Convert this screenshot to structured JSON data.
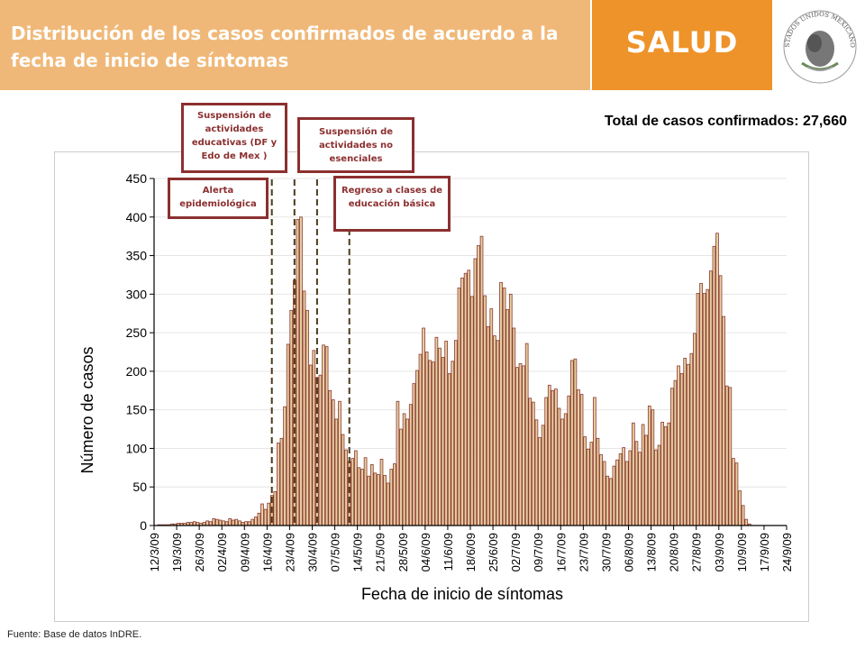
{
  "header": {
    "title": "Distribución de los casos confirmados de acuerdo a la fecha de inicio de síntomas",
    "brand": "SALUD",
    "seal_text": "ESTADOS UNIDOS MEXICANOS",
    "colors": {
      "title_band": "#f0b878",
      "brand_band": "#ee9329"
    }
  },
  "total_label": "Total de casos confirmados: 27,660",
  "source": "Fuente: Base de datos InDRE.",
  "annotations": [
    {
      "id": "ann-alerta",
      "text": "Alerta epidemiológica",
      "date": "2009-04-17"
    },
    {
      "id": "ann-educativas",
      "text": "Suspensión de actividades educativas (DF y Edo de Mex )",
      "date": "2009-04-24"
    },
    {
      "id": "ann-no-esenciales",
      "text": "Suspensión de actividades no esenciales",
      "date": "2009-05-01"
    },
    {
      "id": "ann-regreso",
      "text": "Regreso a clases de educación básica",
      "date": "2009-05-11"
    }
  ],
  "chart_data": {
    "type": "bar",
    "title": "",
    "xlabel": "Fecha de inicio de síntomas",
    "ylabel": "Número de casos",
    "ylim": [
      0,
      450
    ],
    "yticks": [
      0,
      50,
      100,
      150,
      200,
      250,
      300,
      350,
      400,
      450
    ],
    "x_tick_labels": [
      "12/3/09",
      "19/3/09",
      "26/3/09",
      "02/4/09",
      "09/4/09",
      "16/4/09",
      "23/4/09",
      "30/4/09",
      "07/5/09",
      "14/5/09",
      "21/5/09",
      "28/5/09",
      "04/6/09",
      "11/6/09",
      "18/6/09",
      "25/6/09",
      "02/7/09",
      "09/7/09",
      "16/7/09",
      "23/7/09",
      "30/7/09",
      "06/8/09",
      "13/8/09",
      "20/8/09",
      "27/8/09",
      "03/9/09",
      "10/9/09",
      "17/9/09",
      "24/9/09"
    ],
    "x_start": "2009-03-12",
    "grid": true,
    "bar_colors": [
      "#8c3a32",
      "#e6cfa0"
    ],
    "values": [
      0,
      1,
      1,
      1,
      1,
      2,
      2,
      3,
      3,
      3,
      4,
      4,
      5,
      4,
      3,
      4,
      6,
      5,
      9,
      8,
      7,
      6,
      5,
      9,
      7,
      8,
      6,
      4,
      5,
      5,
      8,
      11,
      16,
      28,
      21,
      29,
      39,
      44,
      107,
      113,
      154,
      235,
      279,
      318,
      397,
      400,
      304,
      279,
      208,
      227,
      192,
      195,
      234,
      232,
      175,
      163,
      138,
      161,
      118,
      98,
      83,
      87,
      97,
      75,
      73,
      88,
      64,
      79,
      68,
      66,
      86,
      65,
      55,
      73,
      80,
      161,
      125,
      145,
      138,
      157,
      184,
      201,
      222,
      256,
      225,
      214,
      212,
      244,
      230,
      218,
      239,
      197,
      213,
      240,
      308,
      321,
      327,
      331,
      297,
      346,
      363,
      375,
      298,
      258,
      281,
      246,
      240,
      315,
      308,
      280,
      300,
      256,
      205,
      210,
      207,
      236,
      165,
      160,
      137,
      114,
      130,
      166,
      182,
      175,
      177,
      152,
      138,
      145,
      168,
      214,
      216,
      176,
      170,
      115,
      99,
      108,
      166,
      113,
      92,
      83,
      64,
      61,
      77,
      85,
      93,
      101,
      83,
      97,
      133,
      109,
      95,
      131,
      117,
      155,
      150,
      98,
      104,
      134,
      128,
      133,
      178,
      188,
      207,
      197,
      217,
      209,
      223,
      249,
      301,
      314,
      301,
      306,
      330,
      362,
      379,
      324,
      271,
      181,
      179,
      87,
      81,
      45,
      26,
      8,
      2
    ]
  }
}
